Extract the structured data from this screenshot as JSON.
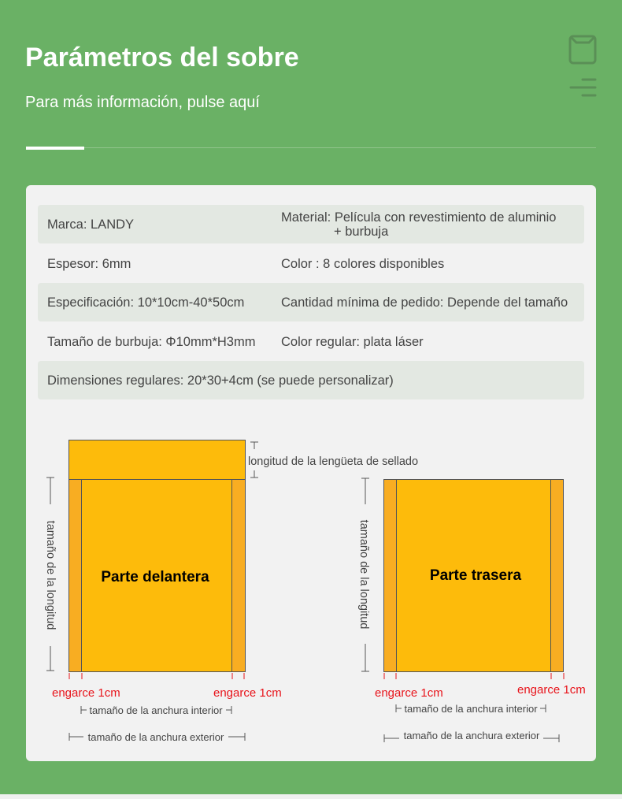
{
  "header": {
    "title": "Parámetros del sobre",
    "subtitle": "Para más información, pulse aquí",
    "icons": [
      "envelope-icon",
      "menu-icon"
    ]
  },
  "specs": [
    {
      "left": "Marca: LANDY",
      "right": "Material: Película con revestimiento de aluminio",
      "right2": "+ burbuja"
    },
    {
      "left": "Espesor: 6mm",
      "right": "Color : 8 colores disponibles"
    },
    {
      "left": "Especificación: 10*10cm-40*50cm",
      "right": "Cantidad mínima de pedido: Depende del tamaño"
    },
    {
      "left": "Tamaño de burbuja: Φ10mm*H3mm",
      "right": "Color regular: plata láser"
    },
    {
      "left": "Dimensiones regulares: 20*30+4cm (se puede personalizar)"
    }
  ],
  "diagram": {
    "front_label": "Parte delantera",
    "back_label": "Parte trasera",
    "flap_label": "longitud de la lengüeta de sellado",
    "length_label": "tamaño de la longitud",
    "crimp_label": "engarce 1cm",
    "inner_width_label": "tamaño de la anchura interior",
    "outer_width_label": "tamaño de la anchura exterior",
    "colors": {
      "body": "#fdbb0b",
      "edge": "#f8ad22",
      "crimp_text": "#e8141b",
      "outline": "#555555"
    }
  }
}
